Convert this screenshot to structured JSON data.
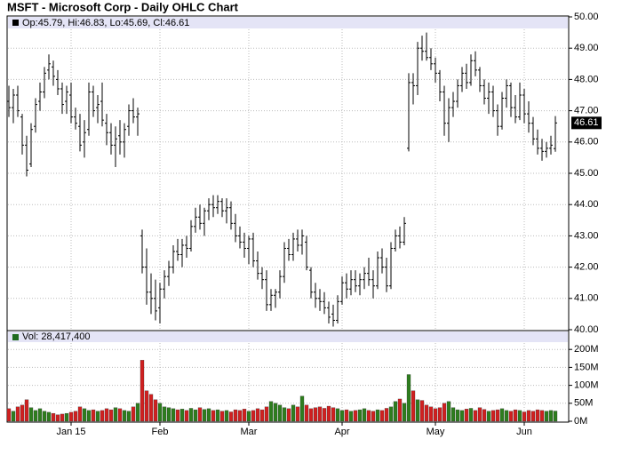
{
  "chart_data": [
    {
      "type": "ohlc",
      "title": "MSFT - Microsoft Corp - Daily OHLC Chart",
      "legend": "Op:45.79, Hi:46.83, Lo:45.69, Cl:46.61",
      "last_label": "46.61",
      "color": "#000000",
      "grid": true,
      "ylim": [
        40,
        50
      ],
      "yticks": [
        {
          "value": 40,
          "label": "40.00"
        },
        {
          "value": 41,
          "label": "41.00"
        },
        {
          "value": 42,
          "label": "42.00"
        },
        {
          "value": 43,
          "label": "43.00"
        },
        {
          "value": 44,
          "label": "44.00"
        },
        {
          "value": 45,
          "label": "45.00"
        },
        {
          "value": 46,
          "label": "46.00"
        },
        {
          "value": 47,
          "label": "47.00"
        },
        {
          "value": 48,
          "label": "48.00"
        },
        {
          "value": 49,
          "label": "49.00"
        },
        {
          "value": 50,
          "label": "50.00"
        }
      ],
      "xticks": [
        {
          "value": 14,
          "label": "Jan 15"
        },
        {
          "value": 34,
          "label": "Feb"
        },
        {
          "value": 54,
          "label": "Mar"
        },
        {
          "value": 75,
          "label": "Apr"
        },
        {
          "value": 96,
          "label": "May"
        },
        {
          "value": 116,
          "label": "Jun"
        }
      ],
      "open": [
        47.3,
        47.1,
        47.5,
        46.8,
        45.9,
        45.3,
        46.5,
        47.3,
        47.6,
        48.3,
        48.4,
        48.0,
        47.7,
        47.3,
        47.5,
        46.8,
        46.5,
        46.0,
        46.4,
        47.6,
        47.1,
        47.3,
        46.6,
        46.3,
        45.9,
        46.2,
        46.0,
        46.5,
        47.0,
        46.8,
        43.0,
        42.0,
        41.2,
        41.0,
        40.7,
        41.3,
        41.7,
        42.0,
        42.5,
        42.4,
        42.7,
        42.6,
        43.3,
        43.6,
        43.4,
        43.8,
        44.0,
        43.9,
        44.1,
        43.8,
        43.9,
        43.4,
        43.0,
        42.8,
        42.6,
        42.9,
        42.2,
        41.8,
        41.6,
        40.8,
        41.1,
        41.2,
        41.7,
        42.6,
        42.4,
        42.9,
        42.7,
        42.8,
        41.9,
        41.2,
        41.0,
        40.9,
        40.7,
        40.5,
        40.3,
        40.9,
        41.5,
        41.3,
        41.6,
        41.4,
        41.6,
        41.8,
        41.6,
        41.4,
        42.3,
        42.0,
        41.4,
        42.6,
        43.0,
        42.8,
        45.8,
        47.9,
        47.8,
        49.0,
        48.9,
        48.7,
        48.5,
        48.2,
        47.6,
        46.6,
        47.1,
        47.3,
        47.8,
        48.2,
        47.9,
        48.6,
        48.3,
        47.8,
        47.4,
        47.6,
        47.0,
        46.5,
        47.4,
        47.8,
        47.1,
        46.8,
        47.5,
        46.9,
        46.6,
        46.1,
        45.8,
        45.7,
        45.8,
        45.79
      ],
      "high": [
        47.8,
        47.7,
        47.8,
        46.9,
        46.2,
        46.6,
        47.4,
        47.9,
        48.4,
        48.8,
        48.6,
        48.3,
        47.9,
        47.8,
        47.9,
        47.1,
        46.9,
        46.7,
        47.9,
        47.8,
        47.5,
        47.9,
        46.9,
        46.6,
        46.5,
        46.7,
        46.6,
        47.2,
        47.4,
        47.1,
        43.2,
        42.6,
        41.8,
        41.6,
        41.5,
        41.9,
        42.2,
        42.7,
        42.9,
        42.9,
        43.0,
        43.5,
        43.9,
        44.0,
        43.9,
        44.2,
        44.3,
        44.3,
        44.2,
        44.2,
        44.1,
        43.7,
        43.3,
        43.1,
        43.0,
        43.1,
        42.5,
        42.0,
        41.9,
        41.3,
        41.3,
        41.9,
        42.8,
        42.9,
        43.1,
        43.2,
        43.2,
        43.0,
        42.0,
        41.5,
        41.3,
        41.2,
        40.9,
        40.8,
        41.1,
        41.7,
        41.8,
        41.9,
        41.9,
        41.8,
        42.0,
        42.3,
        41.9,
        42.5,
        42.6,
        42.3,
        42.8,
        43.2,
        43.3,
        43.6,
        48.2,
        48.2,
        49.2,
        49.4,
        49.5,
        49.0,
        48.7,
        48.3,
        47.8,
        47.4,
        47.6,
        48.0,
        48.4,
        48.5,
        48.8,
        48.9,
        48.4,
        48.0,
        47.9,
        47.8,
        47.2,
        47.6,
        48.0,
        47.9,
        47.5,
        47.9,
        47.7,
        47.3,
        46.8,
        46.4,
        46.1,
        46.0,
        46.2,
        46.83
      ],
      "low": [
        46.8,
        46.6,
        46.8,
        45.6,
        44.9,
        45.2,
        46.3,
        47.0,
        47.4,
        48.0,
        47.8,
        47.5,
        46.9,
        46.9,
        46.6,
        46.4,
        45.7,
        45.5,
        46.2,
        46.8,
        46.6,
        46.5,
        45.9,
        45.6,
        45.2,
        45.6,
        45.5,
        46.2,
        46.6,
        46.2,
        41.8,
        40.8,
        40.5,
        40.3,
        40.2,
        41.0,
        41.4,
        41.8,
        42.2,
        42.0,
        42.3,
        42.5,
        43.1,
        43.2,
        43.0,
        43.5,
        43.6,
        43.7,
        43.6,
        43.4,
        43.2,
        42.8,
        42.6,
        42.3,
        42.1,
        42.0,
        41.6,
        41.3,
        40.6,
        40.6,
        40.7,
        41.0,
        41.5,
        42.2,
        42.2,
        42.5,
        42.4,
        41.9,
        41.0,
        40.7,
        40.6,
        40.5,
        40.2,
        40.1,
        40.2,
        40.8,
        41.0,
        41.1,
        41.2,
        41.1,
        41.3,
        41.4,
        41.0,
        41.3,
        41.8,
        41.2,
        41.3,
        42.5,
        42.6,
        42.7,
        45.7,
        47.2,
        47.5,
        48.6,
        48.6,
        48.3,
        47.9,
        47.3,
        46.2,
        46.0,
        46.8,
        47.1,
        47.6,
        47.7,
        47.8,
        48.1,
        47.6,
        47.2,
        46.9,
        46.8,
        46.2,
        46.4,
        47.1,
        46.8,
        46.6,
        46.7,
        46.6,
        46.3,
        45.9,
        45.6,
        45.4,
        45.5,
        45.6,
        45.69
      ],
      "close": [
        47.1,
        47.5,
        47.0,
        45.9,
        45.1,
        46.4,
        47.2,
        47.6,
        48.2,
        48.5,
        48.1,
        47.7,
        47.2,
        47.6,
        46.8,
        46.6,
        45.9,
        46.3,
        47.6,
        47.0,
        47.2,
        46.7,
        46.3,
        45.9,
        46.1,
        46.0,
        46.4,
        47.0,
        46.8,
        46.9,
        42.0,
        41.2,
        41.0,
        40.6,
        41.3,
        41.7,
        42.0,
        42.5,
        42.4,
        42.7,
        42.6,
        43.3,
        43.6,
        43.4,
        43.8,
        44.0,
        43.9,
        44.1,
        43.8,
        43.9,
        43.4,
        43.0,
        42.8,
        42.6,
        42.9,
        42.2,
        41.8,
        41.6,
        40.8,
        41.1,
        41.2,
        41.7,
        42.6,
        42.4,
        42.9,
        42.7,
        43.0,
        42.0,
        41.2,
        41.0,
        40.9,
        40.7,
        40.4,
        40.3,
        40.9,
        41.5,
        41.3,
        41.6,
        41.4,
        41.6,
        41.8,
        41.6,
        41.4,
        42.3,
        42.0,
        41.4,
        42.6,
        43.0,
        42.8,
        43.4,
        47.9,
        47.8,
        49.0,
        48.9,
        48.7,
        48.5,
        48.2,
        47.6,
        46.6,
        47.1,
        47.3,
        47.8,
        48.2,
        47.9,
        48.6,
        48.3,
        47.8,
        47.4,
        47.6,
        47.0,
        46.5,
        47.4,
        47.8,
        47.1,
        46.8,
        47.5,
        46.9,
        46.6,
        46.1,
        45.8,
        45.7,
        45.8,
        45.9,
        46.61
      ]
    },
    {
      "type": "volume",
      "legend": "Vol: 28,417,400",
      "up_color": "#2e7d1e",
      "down_color": "#d02020",
      "legend_color": "#1f6b1f",
      "ylim": [
        0,
        250
      ],
      "yticks": [
        {
          "value": 0,
          "label": "0M"
        },
        {
          "value": 50,
          "label": "50M"
        },
        {
          "value": 100,
          "label": "100M"
        },
        {
          "value": 150,
          "label": "150M"
        },
        {
          "value": 200,
          "label": "200M"
        }
      ],
      "values": [
        35,
        28,
        40,
        45,
        60,
        38,
        30,
        35,
        28,
        25,
        22,
        18,
        20,
        22,
        25,
        28,
        40,
        35,
        30,
        32,
        28,
        30,
        35,
        32,
        38,
        35,
        30,
        28,
        40,
        50,
        170,
        85,
        75,
        60,
        50,
        40,
        38,
        35,
        32,
        34,
        30,
        36,
        32,
        38,
        33,
        35,
        30,
        32,
        28,
        30,
        26,
        32,
        30,
        34,
        28,
        30,
        35,
        32,
        40,
        55,
        50,
        45,
        38,
        35,
        45,
        40,
        70,
        45,
        35,
        38,
        40,
        36,
        42,
        38,
        35,
        30,
        32,
        28,
        30,
        32,
        35,
        30,
        28,
        32,
        30,
        36,
        40,
        55,
        62,
        50,
        130,
        85,
        60,
        58,
        45,
        40,
        35,
        38,
        50,
        55,
        38,
        32,
        30,
        34,
        36,
        30,
        38,
        33,
        28,
        30,
        32,
        35,
        30,
        28,
        32,
        30,
        26,
        30,
        28,
        32,
        30,
        28,
        30,
        28.4174
      ]
    }
  ]
}
